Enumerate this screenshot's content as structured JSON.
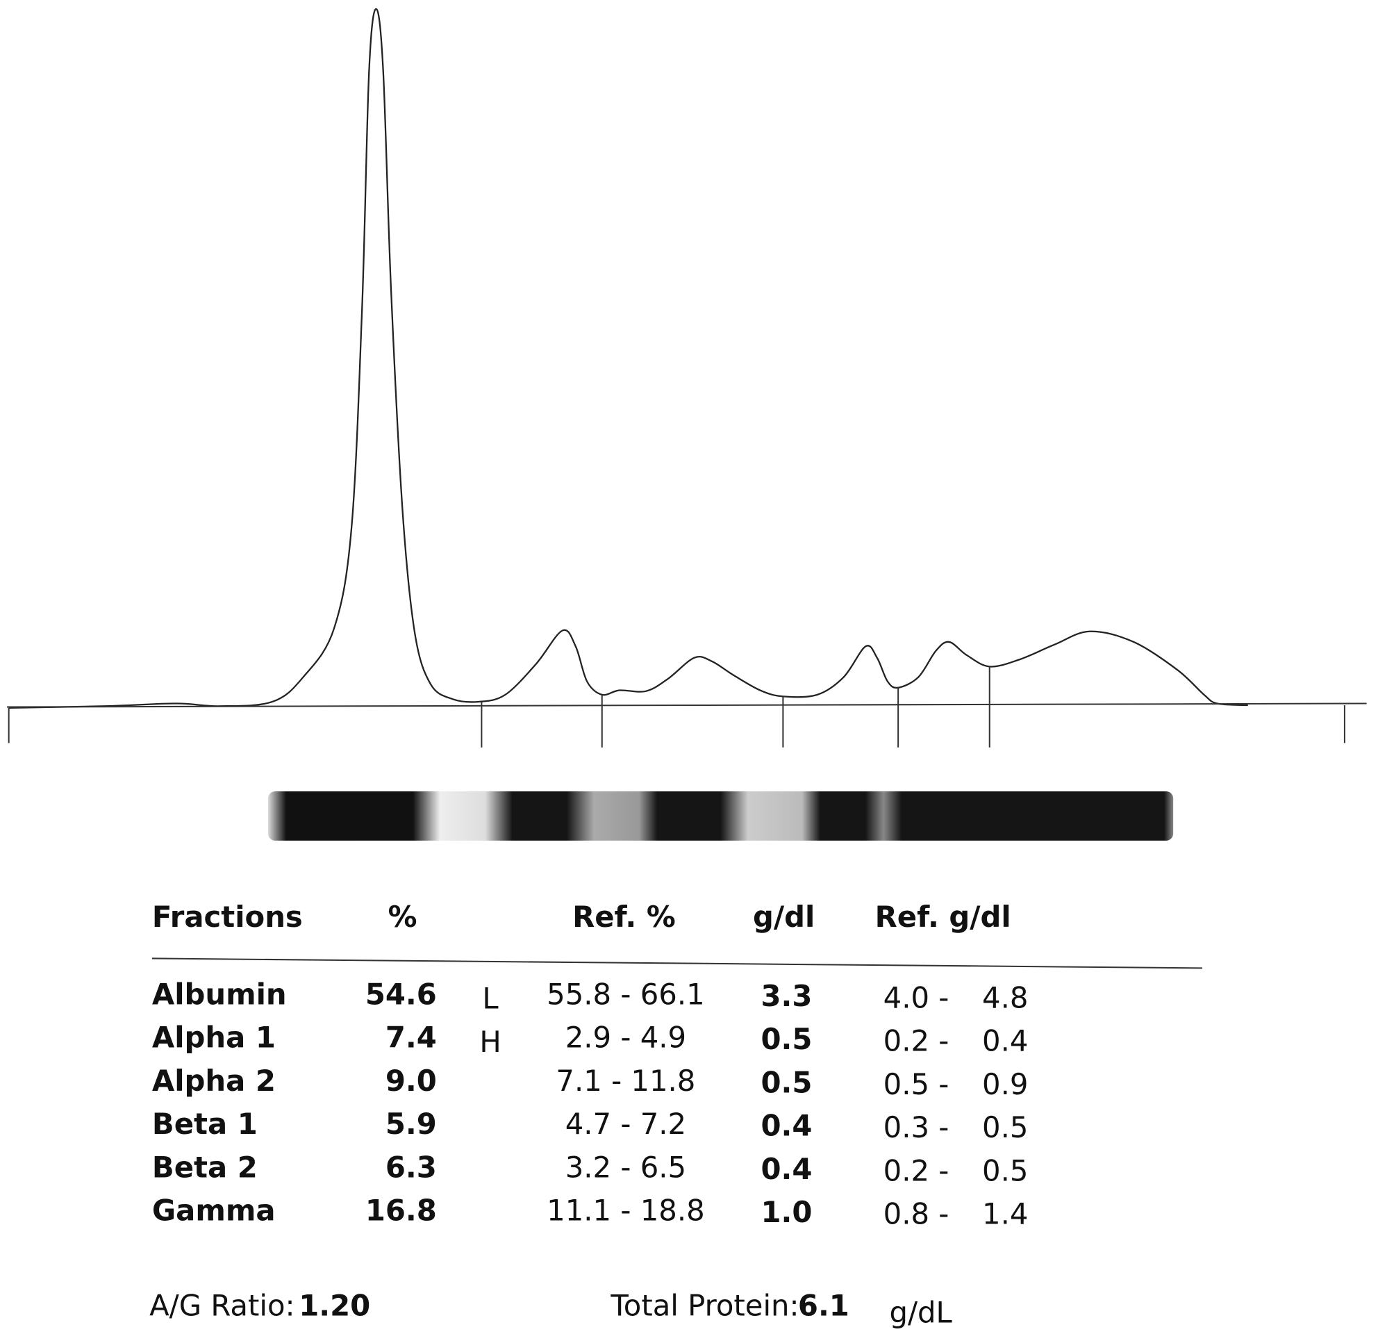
{
  "table": {
    "headers": [
      "Fractions",
      "%",
      "Ref. %",
      "g/dl",
      "Ref. g/dl"
    ],
    "rows": [
      {
        "fraction": "Albumin",
        "percent": "54.6",
        "flag": "L",
        "ref_percent": "55.8 - 66.1",
        "gdl": "3.3",
        "ref_gdl_low": "4.0 -",
        "ref_gdl_high": "4.8"
      },
      {
        "fraction": "Alpha 1",
        "percent": "7.4",
        "flag": "H",
        "ref_percent": "2.9 - 4.9",
        "gdl": "0.5",
        "ref_gdl_low": "0.2 -",
        "ref_gdl_high": "0.4"
      },
      {
        "fraction": "Alpha 2",
        "percent": "9.0",
        "ref_percent": "7.1 - 11.8",
        "gdl": "0.5",
        "ref_gdl_low": "0.5 -",
        "ref_gdl_high": "0.9"
      },
      {
        "fraction": "Beta 1",
        "percent": "5.9",
        "ref_percent": "4.7 - 7.2",
        "gdl": "0.4",
        "ref_gdl_low": "0.3 -",
        "ref_gdl_high": "0.5"
      },
      {
        "fraction": "Beta 2",
        "percent": "6.3",
        "ref_percent": "3.2 - 6.5",
        "gdl": "0.4",
        "ref_gdl_low": "0.2 -",
        "ref_gdl_high": "0.5"
      },
      {
        "fraction": "Gamma",
        "percent": "16.8",
        "ref_percent": "11.1 - 18.8",
        "gdl": "1.0",
        "ref_gdl_low": "0.8 -",
        "ref_gdl_high": "1.4"
      }
    ]
  },
  "footer": {
    "ag_label": "A/G Ratio:",
    "ag_value": "1.20",
    "tp_label": "Total Protein:",
    "tp_value": "6.1",
    "tp_unit": "g/dL"
  }
}
